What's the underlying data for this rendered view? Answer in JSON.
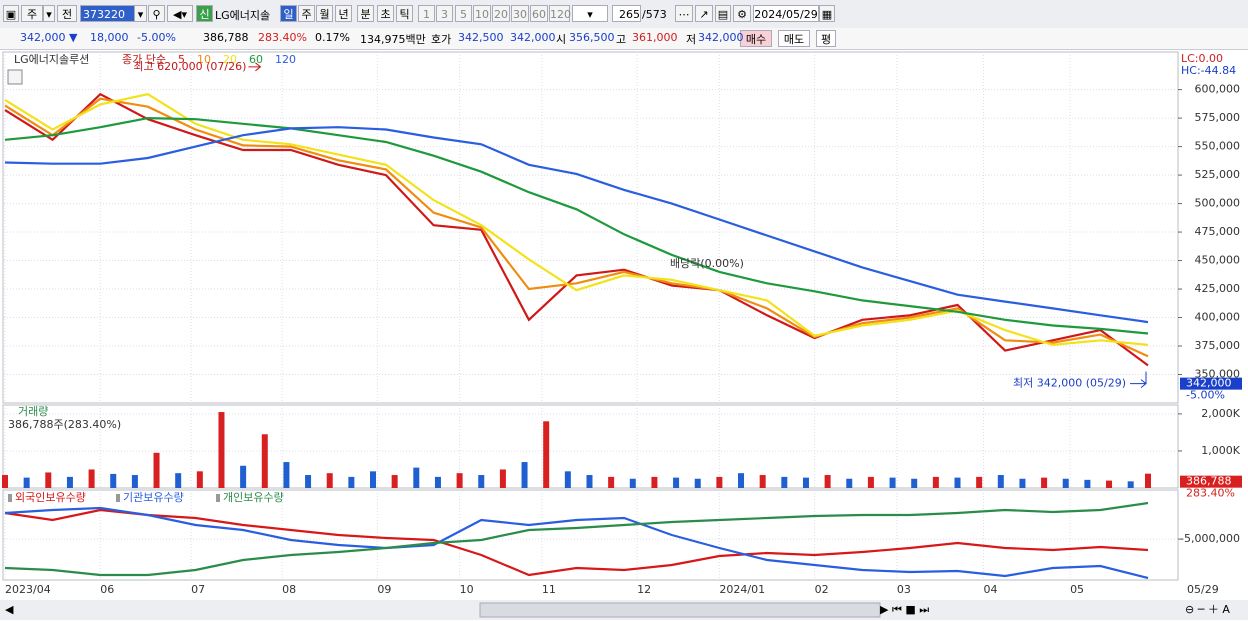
{
  "toolbar": {
    "mode": "주",
    "scope": "전",
    "code": "373220",
    "new": "신",
    "name": "LG에너지솔",
    "periods": [
      "일",
      "주",
      "월",
      "년",
      "분",
      "초",
      "틱"
    ],
    "intervals": [
      "1",
      "3",
      "5",
      "10",
      "20",
      "30",
      "60",
      "120"
    ],
    "count": "265",
    "total": "/573",
    "date": "2024/05/29"
  },
  "info": {
    "items": [
      {
        "text": "342,000 ▼",
        "color": "#1a3fc8"
      },
      {
        "text": "18,000",
        "color": "#1a3fc8"
      },
      {
        "text": "-5.00%",
        "color": "#1a3fc8"
      },
      {
        "text": "386,788",
        "color": "#000"
      },
      {
        "text": "283.40%",
        "color": "#d02020"
      },
      {
        "text": "0.17%",
        "color": "#000"
      },
      {
        "text": "134,975백만",
        "color": "#000"
      },
      {
        "text": "호가",
        "color": "#000"
      },
      {
        "text": "342,500",
        "color": "#1a3fc8"
      },
      {
        "text": "342,000",
        "color": "#1a3fc8"
      },
      {
        "text": "시",
        "color": "#000"
      },
      {
        "text": "356,500",
        "color": "#1a3fc8"
      },
      {
        "text": "고",
        "color": "#000"
      },
      {
        "text": "361,000",
        "color": "#d02020"
      },
      {
        "text": "저",
        "color": "#000"
      },
      {
        "text": "342,000",
        "color": "#1a3fc8"
      }
    ],
    "buy": "매수",
    "sell": "매도",
    "avg": "평"
  },
  "chart_data": [
    {
      "type": "line",
      "title": "LG에너지솔루션",
      "legend_prefix": "종가 단순",
      "lc": "LC:0.00",
      "hc": "HC:-44.84",
      "grid": true,
      "x": [
        0,
        11,
        22,
        33,
        44,
        55,
        66,
        77,
        88,
        99,
        110,
        121,
        132,
        143,
        154,
        165,
        176,
        187,
        198,
        209,
        220,
        231,
        242,
        253,
        264
      ],
      "xlim": [
        0,
        264
      ],
      "xticks": [
        {
          "value": 0,
          "label": "2023/04"
        },
        {
          "value": 22,
          "label": "06"
        },
        {
          "value": 43,
          "label": "07"
        },
        {
          "value": 64,
          "label": "08"
        },
        {
          "value": 86,
          "label": "09"
        },
        {
          "value": 105,
          "label": "10"
        },
        {
          "value": 124,
          "label": "11"
        },
        {
          "value": 146,
          "label": "12"
        },
        {
          "value": 165,
          "label": "2024/01"
        },
        {
          "value": 187,
          "label": "02"
        },
        {
          "value": 206,
          "label": "03"
        },
        {
          "value": 226,
          "label": "04"
        },
        {
          "value": 246,
          "label": "05"
        }
      ],
      "last_date": "05/29",
      "ylim": [
        325000,
        633000
      ],
      "yticks": [
        {
          "value": 350000,
          "label": "350,000"
        },
        {
          "value": 375000,
          "label": "375,000"
        },
        {
          "value": 400000,
          "label": "400,000"
        },
        {
          "value": 425000,
          "label": "425,000"
        },
        {
          "value": 450000,
          "label": "450,000"
        },
        {
          "value": 475000,
          "label": "475,000"
        },
        {
          "value": 500000,
          "label": "500,000"
        },
        {
          "value": 525000,
          "label": "525,000"
        },
        {
          "value": 550000,
          "label": "550,000"
        },
        {
          "value": 575000,
          "label": "575,000"
        },
        {
          "value": 600000,
          "label": "600,000"
        }
      ],
      "series": [
        {
          "name": "5",
          "color": "#d01818",
          "values": [
            582000,
            556000,
            596000,
            574000,
            560000,
            547000,
            547000,
            534000,
            525000,
            481000,
            477000,
            398000,
            437000,
            442000,
            428000,
            424000,
            402000,
            382000,
            398000,
            402000,
            411000,
            371000,
            380000,
            389000,
            358000
          ]
        },
        {
          "name": "10",
          "color": "#f08c10",
          "values": [
            586000,
            560000,
            592000,
            585000,
            565000,
            551000,
            550000,
            538000,
            530000,
            492000,
            479000,
            425000,
            430000,
            440000,
            430000,
            424000,
            408000,
            383000,
            395000,
            400000,
            408000,
            380000,
            378000,
            385000,
            366000
          ]
        },
        {
          "name": "20",
          "color": "#f2e21a",
          "values": [
            591000,
            565000,
            587000,
            596000,
            570000,
            556000,
            552000,
            543000,
            534000,
            503000,
            481000,
            451000,
            424000,
            437000,
            433000,
            424000,
            415000,
            384000,
            393000,
            398000,
            406000,
            389000,
            376000,
            380000,
            376000
          ]
        },
        {
          "name": "60",
          "color": "#1e9a3c",
          "values": [
            556000,
            560000,
            567000,
            575000,
            574000,
            570000,
            566000,
            560000,
            554000,
            542000,
            528000,
            510000,
            495000,
            473000,
            455000,
            440000,
            430000,
            423000,
            415000,
            410000,
            405000,
            398000,
            393000,
            390000,
            386000
          ]
        },
        {
          "name": "120",
          "color": "#2a5ee0",
          "values": [
            536000,
            535000,
            535000,
            540000,
            550000,
            560000,
            566000,
            567000,
            565000,
            558000,
            552000,
            534000,
            526000,
            512000,
            500000,
            486000,
            472000,
            458000,
            444000,
            432000,
            420000,
            414000,
            408000,
            402000,
            396000
          ]
        }
      ],
      "high": {
        "label": "최고 620,000 (07/26)",
        "value": 620000,
        "x": 59
      },
      "low": {
        "label": "최저 342,000 (05/29)",
        "value": 342000,
        "x": 264
      },
      "dividend": "배당락(0.00%)",
      "last": {
        "value": 342000,
        "label": "342,000",
        "change": "-5.00%"
      }
    },
    {
      "type": "bar",
      "title": "거래량",
      "subtitle": "386,788주(283.40%)",
      "x": [
        0,
        5,
        10,
        15,
        20,
        25,
        30,
        35,
        40,
        45,
        50,
        55,
        60,
        65,
        70,
        75,
        80,
        85,
        90,
        95,
        100,
        105,
        110,
        115,
        120,
        125,
        130,
        135,
        140,
        145,
        150,
        155,
        160,
        165,
        170,
        175,
        180,
        185,
        190,
        195,
        200,
        205,
        210,
        215,
        220,
        225,
        230,
        235,
        240,
        245,
        250,
        255,
        260,
        264
      ],
      "xlim": [
        0,
        264
      ],
      "values": [
        350000,
        280000,
        420000,
        300000,
        500000,
        380000,
        350000,
        950000,
        400000,
        450000,
        2050000,
        600000,
        1450000,
        700000,
        350000,
        400000,
        300000,
        450000,
        350000,
        550000,
        300000,
        400000,
        350000,
        500000,
        700000,
        1800000,
        450000,
        350000,
        300000,
        250000,
        300000,
        280000,
        250000,
        300000,
        400000,
        350000,
        300000,
        280000,
        350000,
        250000,
        300000,
        280000,
        250000,
        300000,
        280000,
        300000,
        350000,
        250000,
        280000,
        250000,
        220000,
        200000,
        180000,
        386788
      ],
      "up": [
        true,
        false,
        true,
        false,
        true,
        false,
        false,
        true,
        false,
        true,
        true,
        false,
        true,
        false,
        false,
        true,
        false,
        false,
        true,
        false,
        false,
        true,
        false,
        true,
        false,
        true,
        false,
        false,
        true,
        false,
        true,
        false,
        false,
        true,
        false,
        true,
        false,
        false,
        true,
        false,
        true,
        false,
        false,
        true,
        false,
        true,
        false,
        false,
        true,
        false,
        false,
        true,
        false,
        true
      ],
      "color_up": "#d82020",
      "color_down": "#1f5fd0",
      "ylim": [
        0,
        2240000
      ],
      "yticks": [
        {
          "value": 2000000,
          "label": "2,000K"
        },
        {
          "value": 1000000,
          "label": "1,000K"
        }
      ],
      "last_labels": [
        "386,788",
        "283.40%"
      ]
    },
    {
      "type": "line",
      "x": [
        0,
        11,
        22,
        33,
        44,
        55,
        66,
        77,
        88,
        99,
        110,
        121,
        132,
        143,
        154,
        165,
        176,
        187,
        198,
        209,
        220,
        231,
        242,
        253,
        264
      ],
      "xlim": [
        0,
        264
      ],
      "ylim": [
        -10000000,
        1000000
      ],
      "yticks": [
        {
          "value": -5000000,
          "label": "-5,000,000"
        }
      ],
      "series": [
        {
          "name": "외국인보유수량",
          "color": "#d81818",
          "values": [
            -1810000,
            -2670000,
            -1440000,
            -2060000,
            -2420000,
            -3280000,
            -3890000,
            -4500000,
            -4870000,
            -5110000,
            -6940000,
            -9390000,
            -8530000,
            -8780000,
            -8170000,
            -7070000,
            -6700000,
            -6940000,
            -6580000,
            -6090000,
            -5480000,
            -6090000,
            -6330000,
            -5970000,
            -6330000
          ]
        },
        {
          "name": "기관보유수량",
          "color": "#2a5ee0",
          "values": [
            -1810000,
            -1440000,
            -1200000,
            -2060000,
            -3280000,
            -3890000,
            -5110000,
            -5720000,
            -6090000,
            -5720000,
            -2670000,
            -3280000,
            -2670000,
            -2420000,
            -4500000,
            -6090000,
            -7560000,
            -8170000,
            -8780000,
            -9020000,
            -8900000,
            -9510000,
            -8530000,
            -8290000,
            -9760000
          ]
        },
        {
          "name": "개인보유수량",
          "color": "#2a8c4a",
          "values": [
            -8530000,
            -8780000,
            -9390000,
            -9390000,
            -8780000,
            -7560000,
            -6940000,
            -6580000,
            -6090000,
            -5480000,
            -5110000,
            -3890000,
            -3640000,
            -3280000,
            -2910000,
            -2670000,
            -2420000,
            -2180000,
            -2060000,
            -2060000,
            -1810000,
            -1440000,
            -1690000,
            -1440000,
            -590000
          ]
        }
      ]
    }
  ]
}
